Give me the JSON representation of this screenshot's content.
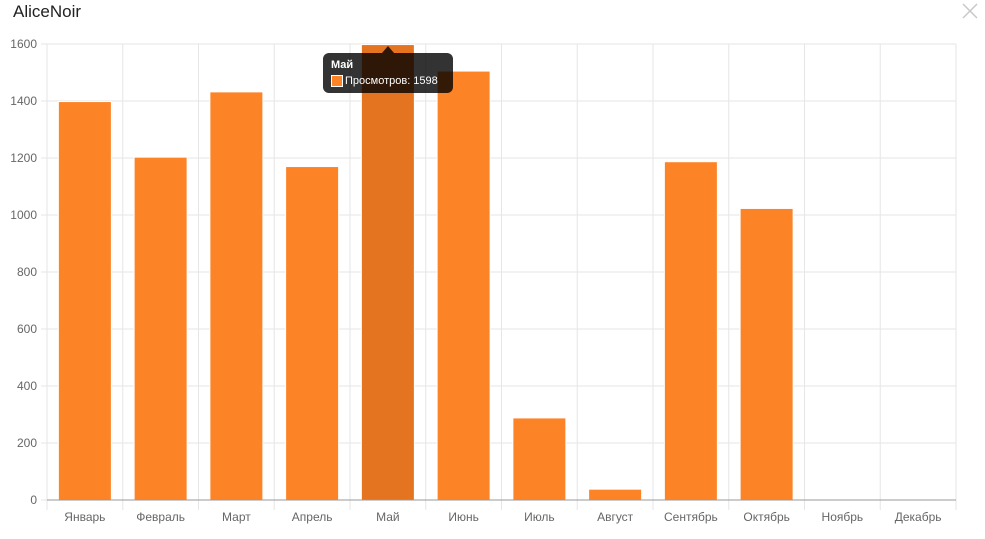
{
  "window": {
    "title": "AliceNoir",
    "close_icon": "close-icon"
  },
  "tooltip": {
    "title": "Май",
    "label": "Просмотров",
    "value": "1598",
    "text": "Просмотров: 1598"
  },
  "colors": {
    "bar": "#fd8327",
    "bar_active": "#e4741f",
    "grid": "#e6e6e6"
  },
  "chart_data": {
    "type": "bar",
    "categories": [
      "Январь",
      "Февраль",
      "Март",
      "Апрель",
      "Май",
      "Июнь",
      "Июль",
      "Август",
      "Сентябрь",
      "Октябрь",
      "Ноябрь",
      "Декабрь"
    ],
    "series": [
      {
        "name": "Просмотров",
        "values": [
          1398,
          1203,
          1432,
          1170,
          1598,
          1505,
          288,
          38,
          1187,
          1023,
          0,
          0
        ]
      }
    ],
    "y_ticks": [
      "0",
      "200",
      "400",
      "600",
      "800",
      "1000",
      "1200",
      "1400",
      "1600"
    ],
    "ylim": [
      0,
      1600
    ],
    "highlighted_index": 4,
    "grid": true
  }
}
